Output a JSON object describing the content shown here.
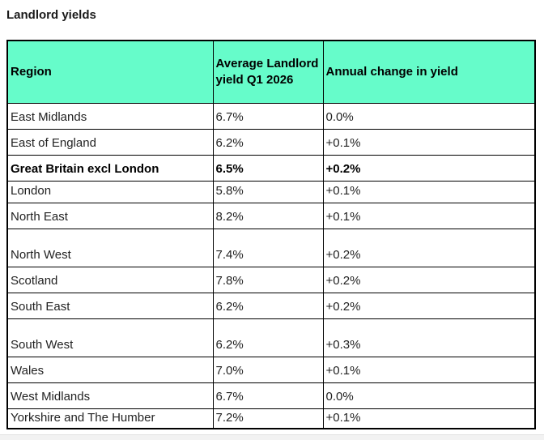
{
  "chart_data": {
    "type": "table",
    "title": "Landlord yields",
    "columns": [
      "Region",
      "Average Landlord yield Q1 2026",
      "Annual change in yield"
    ],
    "rows": [
      {
        "region": "East Midlands",
        "avg_yield": "6.7%",
        "annual_change": "0.0%",
        "bold": false,
        "row_size": "normal"
      },
      {
        "region": "East of England",
        "avg_yield": "6.2%",
        "annual_change": "+0.1%",
        "bold": false,
        "row_size": "normal"
      },
      {
        "region": "Great Britain excl London",
        "avg_yield": "6.5%",
        "annual_change": "+0.2%",
        "bold": true,
        "row_size": "normal"
      },
      {
        "region": "London",
        "avg_yield": "5.8%",
        "annual_change": "+0.1%",
        "bold": false,
        "row_size": "compact"
      },
      {
        "region": "North East",
        "avg_yield": "8.2%",
        "annual_change": "+0.1%",
        "bold": false,
        "row_size": "normal"
      },
      {
        "region": "North West",
        "avg_yield": "7.4%",
        "annual_change": "+0.2%",
        "bold": false,
        "row_size": "tall"
      },
      {
        "region": "Scotland",
        "avg_yield": "7.8%",
        "annual_change": "+0.2%",
        "bold": false,
        "row_size": "normal"
      },
      {
        "region": "South East",
        "avg_yield": "6.2%",
        "annual_change": "+0.2%",
        "bold": false,
        "row_size": "normal"
      },
      {
        "region": "South West",
        "avg_yield": "6.2%",
        "annual_change": "+0.3%",
        "bold": false,
        "row_size": "tall"
      },
      {
        "region": "Wales",
        "avg_yield": "7.0%",
        "annual_change": "+0.1%",
        "bold": false,
        "row_size": "normal"
      },
      {
        "region": "West Midlands",
        "avg_yield": "6.7%",
        "annual_change": "0.0%",
        "bold": false,
        "row_size": "normal"
      },
      {
        "region": "Yorkshire and The Humber",
        "avg_yield": "7.2%",
        "annual_change": "+0.1%",
        "bold": false,
        "row_size": "short"
      }
    ],
    "layout_hints": {
      "header_bg": "#66FCCA",
      "border_color": "#000000",
      "text_align": "left",
      "grid": "full black gridlines",
      "legend_position": "none"
    }
  }
}
